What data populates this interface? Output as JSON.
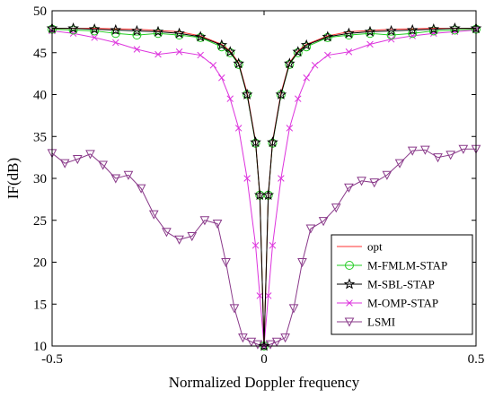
{
  "chart_data": {
    "type": "line",
    "xlabel": "Normalized Doppler frequency",
    "ylabel": "IF(dB)",
    "xlim": [
      -0.5,
      0.5
    ],
    "ylim": [
      10,
      50
    ],
    "xticks": [
      -0.5,
      0,
      0.5
    ],
    "xtick_labels": [
      "-0.5",
      "0",
      "0.5"
    ],
    "yticks": [
      10,
      15,
      20,
      25,
      30,
      35,
      40,
      45,
      50
    ],
    "ytick_labels": [
      "10",
      "15",
      "20",
      "25",
      "30",
      "35",
      "40",
      "45",
      "50"
    ],
    "grid": false,
    "legend_position": "bottom-right",
    "series": [
      {
        "name": "opt",
        "color": "#ff3030",
        "marker": "none",
        "x": [
          -0.5,
          -0.4,
          -0.3,
          -0.2,
          -0.15,
          -0.1,
          -0.08,
          -0.06,
          -0.04,
          -0.02,
          -0.01,
          0,
          0.01,
          0.02,
          0.04,
          0.06,
          0.08,
          0.1,
          0.15,
          0.2,
          0.3,
          0.4,
          0.5
        ],
        "y": [
          47.9,
          47.9,
          47.8,
          47.5,
          47.0,
          46.0,
          45.2,
          43.8,
          40.2,
          34.4,
          28.0,
          10.0,
          28.0,
          34.4,
          40.2,
          43.8,
          45.2,
          46.0,
          47.0,
          47.5,
          47.8,
          47.9,
          47.9
        ]
      },
      {
        "name": "M-FMLM-STAP",
        "color": "#22cc22",
        "marker": "circle",
        "x": [
          -0.5,
          -0.45,
          -0.4,
          -0.35,
          -0.3,
          -0.25,
          -0.2,
          -0.15,
          -0.1,
          -0.08,
          -0.06,
          -0.04,
          -0.02,
          -0.01,
          0,
          0.01,
          0.02,
          0.04,
          0.06,
          0.08,
          0.1,
          0.15,
          0.2,
          0.25,
          0.3,
          0.35,
          0.4,
          0.45,
          0.5
        ],
        "y": [
          47.8,
          47.7,
          47.6,
          47.3,
          47.1,
          47.3,
          47.1,
          46.8,
          45.7,
          45.0,
          43.6,
          40.0,
          34.2,
          28.0,
          10.0,
          28.0,
          34.2,
          40.0,
          43.6,
          45.0,
          45.7,
          46.8,
          47.1,
          47.3,
          47.1,
          47.3,
          47.6,
          47.7,
          47.8
        ]
      },
      {
        "name": "M-SBL-STAP",
        "color": "#000000",
        "marker": "star",
        "x": [
          -0.5,
          -0.45,
          -0.4,
          -0.35,
          -0.3,
          -0.25,
          -0.2,
          -0.15,
          -0.1,
          -0.08,
          -0.06,
          -0.04,
          -0.02,
          -0.01,
          0,
          0.01,
          0.02,
          0.04,
          0.06,
          0.08,
          0.1,
          0.15,
          0.2,
          0.25,
          0.3,
          0.35,
          0.4,
          0.45,
          0.5
        ],
        "y": [
          47.9,
          47.9,
          47.8,
          47.7,
          47.6,
          47.5,
          47.3,
          46.9,
          45.9,
          45.1,
          43.7,
          40.0,
          34.3,
          28.0,
          10.0,
          28.0,
          34.3,
          40.0,
          43.7,
          45.1,
          45.9,
          46.9,
          47.3,
          47.5,
          47.6,
          47.7,
          47.8,
          47.9,
          47.9
        ]
      },
      {
        "name": "M-OMP-STAP",
        "color": "#dd33dd",
        "marker": "x",
        "x": [
          -0.5,
          -0.45,
          -0.4,
          -0.35,
          -0.3,
          -0.25,
          -0.2,
          -0.15,
          -0.12,
          -0.1,
          -0.08,
          -0.06,
          -0.04,
          -0.02,
          -0.01,
          0,
          0.01,
          0.02,
          0.04,
          0.06,
          0.08,
          0.1,
          0.12,
          0.15,
          0.2,
          0.25,
          0.3,
          0.35,
          0.4,
          0.45,
          0.5
        ],
        "y": [
          47.6,
          47.3,
          46.8,
          46.2,
          45.4,
          44.8,
          45.1,
          44.7,
          43.5,
          42.0,
          39.5,
          36.0,
          30.0,
          22.0,
          16.0,
          10.0,
          16.0,
          22.0,
          30.0,
          36.0,
          39.5,
          42.0,
          43.5,
          44.7,
          45.1,
          46.0,
          46.6,
          47.0,
          47.3,
          47.5,
          47.7
        ]
      },
      {
        "name": "LSMI",
        "color": "#8a3a8a",
        "marker": "triangle-down",
        "x": [
          -0.5,
          -0.47,
          -0.44,
          -0.41,
          -0.38,
          -0.35,
          -0.32,
          -0.29,
          -0.26,
          -0.23,
          -0.2,
          -0.17,
          -0.14,
          -0.11,
          -0.09,
          -0.07,
          -0.05,
          -0.03,
          -0.015,
          0,
          0.015,
          0.03,
          0.05,
          0.07,
          0.09,
          0.11,
          0.14,
          0.17,
          0.2,
          0.23,
          0.26,
          0.29,
          0.32,
          0.35,
          0.38,
          0.41,
          0.44,
          0.47,
          0.5
        ],
        "y": [
          33.0,
          31.8,
          32.3,
          32.9,
          31.6,
          30.0,
          30.4,
          28.8,
          25.7,
          23.6,
          22.7,
          23.1,
          25.0,
          24.6,
          20.0,
          14.5,
          11.0,
          10.5,
          10.2,
          10.0,
          10.2,
          10.5,
          11.0,
          14.5,
          20.0,
          24.0,
          24.9,
          26.5,
          28.9,
          29.7,
          29.5,
          30.4,
          31.8,
          33.3,
          33.4,
          32.5,
          32.8,
          33.5,
          33.5
        ]
      }
    ]
  }
}
